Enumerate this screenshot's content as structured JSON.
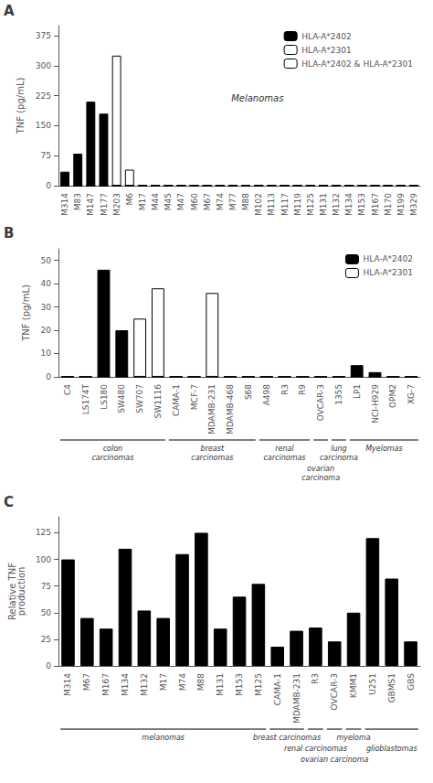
{
  "chart_data": [
    {
      "type": "bar",
      "title": "A",
      "categories": [
        "M314",
        "M83",
        "M147",
        "M177",
        "M203",
        "M6",
        "M17",
        "M44",
        "M45",
        "M47",
        "M60",
        "M67",
        "M74",
        "M77",
        "M88",
        "M102",
        "M113",
        "M117",
        "M119",
        "M125",
        "M131",
        "M132",
        "M134",
        "M153",
        "M167",
        "M170",
        "M199",
        "M329"
      ],
      "series": [
        {
          "name": "HLA-A*2402",
          "color": "#000000",
          "values": [
            35,
            80,
            210,
            180,
            0,
            0,
            0,
            0,
            0,
            0,
            0,
            0,
            0,
            0,
            0,
            0,
            0,
            0,
            0,
            0,
            0,
            0,
            0,
            0,
            0,
            0,
            0,
            0
          ]
        },
        {
          "name": "HLA-A*2301",
          "color": "#ffffff",
          "values": [
            0,
            0,
            0,
            0,
            0,
            0,
            0,
            0,
            0,
            0,
            0,
            0,
            0,
            0,
            0,
            0,
            0,
            0,
            0,
            0,
            0,
            0,
            0,
            0,
            0,
            0,
            0,
            0
          ]
        },
        {
          "name": "HLA-A*2402 & HLA-A*2301",
          "color": "#ffffff",
          "values": [
            0,
            0,
            0,
            0,
            325,
            40,
            0,
            0,
            0,
            0,
            0,
            0,
            0,
            0,
            0,
            0,
            0,
            0,
            0,
            0,
            0,
            0,
            0,
            0,
            0,
            0,
            0,
            0
          ]
        }
      ],
      "ylabel": "TNF (pg/mL)",
      "ylim": [
        0,
        400
      ],
      "yticks": [
        0,
        75,
        150,
        225,
        300,
        375
      ],
      "grid": false,
      "legend": "upper right",
      "annotations": [
        "Melanomas"
      ]
    },
    {
      "type": "bar",
      "title": "B",
      "categories": [
        "C4",
        "LS174T",
        "LS180",
        "SW480",
        "SW707",
        "SW1116",
        "CAMA-1",
        "MCF-7",
        "MDAMB-231",
        "MDAMB-468",
        "S68",
        "A498",
        "R3",
        "R9",
        "OVCAR-3",
        "1355",
        "LP1",
        "NCI-H929",
        "OPM2",
        "XG-7"
      ],
      "series": [
        {
          "name": "HLA-A*2402",
          "color": "#000000",
          "values": [
            0,
            0,
            46,
            20,
            0,
            0,
            0,
            0,
            0,
            0,
            0,
            0,
            0,
            0,
            0,
            0,
            5,
            2,
            0,
            0
          ]
        },
        {
          "name": "HLA-A*2301",
          "color": "#ffffff",
          "values": [
            0,
            0,
            0,
            0,
            25,
            38,
            0,
            0,
            36,
            0,
            0,
            0,
            0,
            0,
            0,
            0,
            0,
            0,
            0,
            0
          ]
        }
      ],
      "ylabel": "TNF (pg/mL)",
      "ylim": [
        0,
        55
      ],
      "yticks": [
        0,
        10,
        20,
        30,
        40,
        50
      ],
      "grid": false,
      "legend": "upper right",
      "groups": [
        {
          "label": "colon\ncarcinomas",
          "first": "C4",
          "last": "SW1116"
        },
        {
          "label": "breast\ncarcinomas",
          "first": "CAMA-1",
          "last": "S68"
        },
        {
          "label": "renal\ncarcinomas",
          "first": "A498",
          "last": "R9"
        },
        {
          "label": "ovarian\ncarcinoma",
          "first": "OVCAR-3",
          "last": "OVCAR-3"
        },
        {
          "label": "lung\ncarcinoma",
          "first": "1355",
          "last": "1355"
        },
        {
          "label": "Myelomas",
          "first": "LP1",
          "last": "XG-7"
        }
      ]
    },
    {
      "type": "bar",
      "title": "C",
      "categories": [
        "M314",
        "M67",
        "M167",
        "M134",
        "M132",
        "M17",
        "M74",
        "M88",
        "M131",
        "M153",
        "M125",
        "CAMA-1",
        "MDAMB-231",
        "R3",
        "OVCAR-3",
        "KMM1",
        "U251",
        "GBMS1",
        "GBS"
      ],
      "values": [
        100,
        45,
        35,
        110,
        52,
        45,
        105,
        125,
        35,
        65,
        77,
        18,
        33,
        36,
        23,
        50,
        120,
        82,
        23
      ],
      "color": "#000000",
      "ylabel": "Relative TNF\nproduction",
      "ylim": [
        0,
        140
      ],
      "yticks": [
        0,
        25,
        50,
        75,
        100,
        125
      ],
      "grid": false,
      "groups": [
        {
          "label": "melanomas",
          "first": "M314",
          "last": "M125"
        },
        {
          "label": "breast carcinomas",
          "first": "CAMA-1",
          "last": "MDAMB-231"
        },
        {
          "label": "renal carcinomas",
          "first": "R3",
          "last": "R3"
        },
        {
          "label": "ovarian carcinoma",
          "first": "OVCAR-3",
          "last": "OVCAR-3"
        },
        {
          "label": "myeloma",
          "first": "KMM1",
          "last": "KMM1"
        },
        {
          "label": "glioblastomas",
          "first": "U251",
          "last": "GBS"
        }
      ]
    }
  ]
}
